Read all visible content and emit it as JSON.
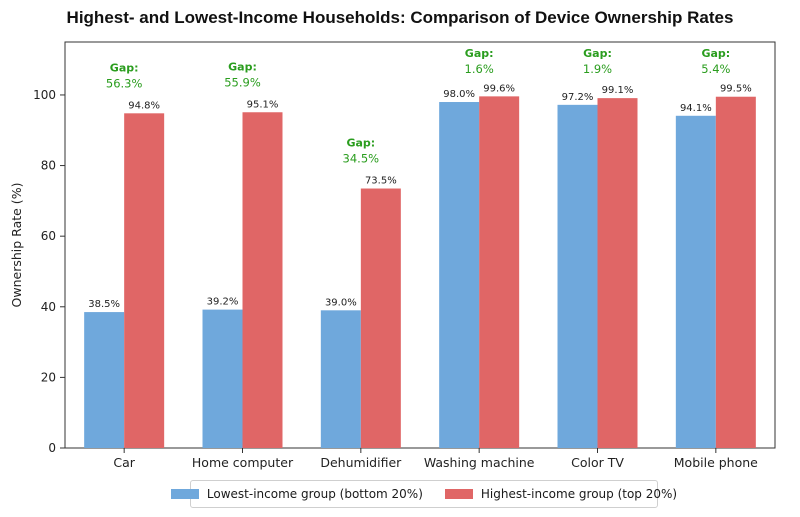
{
  "colors": {
    "lowest": "#6fa8dc",
    "highest": "#e06666",
    "gap": "#2a9d1e"
  },
  "chart_data": {
    "type": "bar",
    "title": "Highest- and Lowest-Income Households: Comparison of Device Ownership Rates",
    "xlabel": "",
    "ylabel": "Ownership Rate (%)",
    "ylim": [
      0,
      115
    ],
    "yticks": [
      0,
      20,
      40,
      60,
      80,
      100
    ],
    "categories": [
      "Car",
      "Home computer",
      "Dehumidifier",
      "Washing machine",
      "Color TV",
      "Mobile phone"
    ],
    "series": [
      {
        "name": "Lowest-income group (bottom 20%)",
        "values": [
          38.5,
          39.2,
          39.0,
          98.0,
          97.2,
          94.1
        ],
        "labels": [
          "38.5%",
          "39.2%",
          "39.0%",
          "98.0%",
          "97.2%",
          "94.1%"
        ]
      },
      {
        "name": "Highest-income group (top 20%)",
        "values": [
          94.8,
          95.1,
          73.5,
          99.6,
          99.1,
          99.5
        ],
        "labels": [
          "94.8%",
          "95.1%",
          "73.5%",
          "99.6%",
          "99.1%",
          "99.5%"
        ]
      }
    ],
    "gap_title": "Gap:",
    "gaps": [
      "56.3%",
      "55.9%",
      "34.5%",
      "1.6%",
      "1.9%",
      "5.4%"
    ],
    "legend_position": "bottom",
    "grid": false
  }
}
